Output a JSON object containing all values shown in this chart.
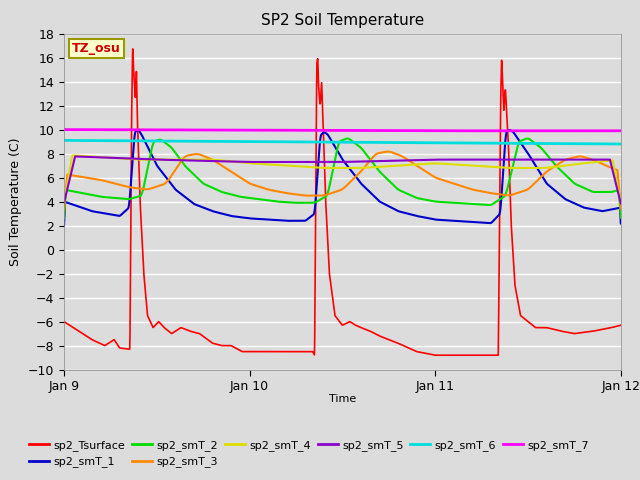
{
  "title": "SP2 Soil Temperature",
  "xlabel": "Time",
  "ylabel": "Soil Temperature (C)",
  "ylim": [
    -10,
    18
  ],
  "yticks": [
    -10,
    -8,
    -6,
    -4,
    -2,
    0,
    2,
    4,
    6,
    8,
    10,
    12,
    14,
    16,
    18
  ],
  "xtick_labels": [
    "Jan 9",
    "Jan 10",
    "Jan 11",
    "Jan 12"
  ],
  "bg_color": "#dcdcdc",
  "grid_color": "#ffffff",
  "series_colors": {
    "sp2_Tsurface": "#ff0000",
    "sp2_smT_1": "#0000cc",
    "sp2_smT_2": "#00dd00",
    "sp2_smT_3": "#ff8800",
    "sp2_smT_4": "#dddd00",
    "sp2_smT_5": "#8800cc",
    "sp2_smT_6": "#00dddd",
    "sp2_smT_7": "#ff00ff"
  },
  "annotation_text": "TZ_osu",
  "annotation_color": "#cc0000",
  "annotation_bg": "#ffffcc",
  "annotation_border": "#999900"
}
